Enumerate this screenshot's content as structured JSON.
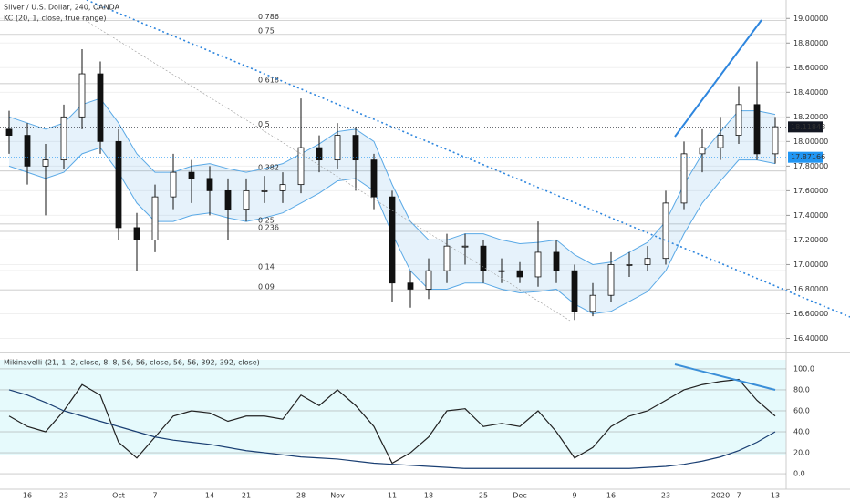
{
  "chart_data": [
    {
      "type": "candlestick",
      "title": "Silver / U.S. Dollar, 240, OANDA",
      "subtitle": "KC (20, 1, close, true range)",
      "categories": [
        null,
        "16",
        null,
        "23",
        null,
        null,
        "Oct",
        null,
        "7",
        null,
        null,
        "14",
        null,
        "21",
        null,
        null,
        "28",
        null,
        "Nov",
        null,
        null,
        "11",
        null,
        "18",
        null,
        null,
        "25",
        null,
        "Dec",
        null,
        null,
        "9",
        null,
        "16",
        null,
        null,
        "23",
        null,
        null,
        "2020",
        "7",
        null,
        "13"
      ],
      "open": [
        18.1,
        18.05,
        17.8,
        17.85,
        18.2,
        18.55,
        18.0,
        17.3,
        17.2,
        17.55,
        17.75,
        17.7,
        17.6,
        17.45,
        17.6,
        17.6,
        17.65,
        17.95,
        17.85,
        18.05,
        17.85,
        17.55,
        16.85,
        16.8,
        16.95,
        17.15,
        17.15,
        16.95,
        16.95,
        16.9,
        17.1,
        16.95,
        16.62,
        16.75,
        17.0,
        17.0,
        17.05,
        17.5,
        17.9,
        17.95,
        18.05,
        18.3,
        17.9
      ],
      "high": [
        18.25,
        18.15,
        17.98,
        18.3,
        18.75,
        18.65,
        18.1,
        17.42,
        17.65,
        17.9,
        17.85,
        17.8,
        17.7,
        17.7,
        17.72,
        17.75,
        18.35,
        18.05,
        18.15,
        18.12,
        17.9,
        17.6,
        16.95,
        17.05,
        17.25,
        17.25,
        17.2,
        17.05,
        17.02,
        17.35,
        17.2,
        17.0,
        16.85,
        17.1,
        17.1,
        17.15,
        17.6,
        18.0,
        18.1,
        18.2,
        18.45,
        18.65,
        18.2
      ],
      "low": [
        17.9,
        17.65,
        17.4,
        17.78,
        18.1,
        17.9,
        17.2,
        16.95,
        17.1,
        17.45,
        17.5,
        17.4,
        17.2,
        17.35,
        17.5,
        17.5,
        17.58,
        17.75,
        17.78,
        17.6,
        17.45,
        16.7,
        16.65,
        16.72,
        16.85,
        17.0,
        16.85,
        16.85,
        16.85,
        16.82,
        16.85,
        16.55,
        16.58,
        16.7,
        16.9,
        16.95,
        17.0,
        17.45,
        17.75,
        17.85,
        17.98,
        17.85,
        17.82
      ],
      "close": [
        18.05,
        17.8,
        17.85,
        18.2,
        18.55,
        18.0,
        17.3,
        17.2,
        17.55,
        17.75,
        17.7,
        17.6,
        17.45,
        17.6,
        17.6,
        17.65,
        17.95,
        17.85,
        18.05,
        17.85,
        17.55,
        16.85,
        16.8,
        16.95,
        17.15,
        17.15,
        16.95,
        16.95,
        16.9,
        17.1,
        16.95,
        16.62,
        16.75,
        17.0,
        17.0,
        17.05,
        17.5,
        17.9,
        17.95,
        18.05,
        18.3,
        17.9,
        18.12
      ],
      "band_upper": [
        18.2,
        18.15,
        18.1,
        18.15,
        18.3,
        18.35,
        18.15,
        17.9,
        17.75,
        17.75,
        17.8,
        17.82,
        17.78,
        17.75,
        17.78,
        17.82,
        17.9,
        17.98,
        18.08,
        18.1,
        18.0,
        17.65,
        17.35,
        17.2,
        17.2,
        17.25,
        17.25,
        17.2,
        17.17,
        17.18,
        17.2,
        17.08,
        17.0,
        17.02,
        17.1,
        17.18,
        17.35,
        17.65,
        17.9,
        18.08,
        18.25,
        18.25,
        18.22
      ],
      "band_lower": [
        17.8,
        17.75,
        17.7,
        17.75,
        17.9,
        17.95,
        17.75,
        17.5,
        17.35,
        17.35,
        17.4,
        17.42,
        17.38,
        17.35,
        17.38,
        17.42,
        17.5,
        17.58,
        17.68,
        17.7,
        17.6,
        17.25,
        16.95,
        16.8,
        16.8,
        16.85,
        16.85,
        16.8,
        16.77,
        16.78,
        16.8,
        16.68,
        16.6,
        16.62,
        16.7,
        16.78,
        16.95,
        17.25,
        17.5,
        17.68,
        17.85,
        17.85,
        17.82
      ],
      "band_color": "#5aa9e6",
      "fib_levels": [
        {
          "ratio": 0.786,
          "price": 18.985
        },
        {
          "ratio": 0.75,
          "price": 18.87
        },
        {
          "ratio": 0.618,
          "price": 18.47
        },
        {
          "ratio": 0.5,
          "price": 18.11
        },
        {
          "ratio": 0.382,
          "price": 17.76
        },
        {
          "ratio": 0.25,
          "price": 17.33
        },
        {
          "ratio": 0.236,
          "price": 17.27
        },
        {
          "ratio": 0.14,
          "price": 16.95
        },
        {
          "ratio": 0.09,
          "price": 16.79
        }
      ],
      "price_labels": [
        18.11848,
        17.87166
      ],
      "price_label_colors": [
        "#131722",
        "#2196f3"
      ],
      "ylim": [
        16.3,
        19.15
      ],
      "yticks": [
        {
          "value": 16.4,
          "label": "16.40000"
        },
        {
          "value": 16.6,
          "label": "16.60000"
        },
        {
          "value": 16.8,
          "label": "16.80000"
        },
        {
          "value": 17.0,
          "label": "17.00000"
        },
        {
          "value": 17.2,
          "label": "17.20000"
        },
        {
          "value": 17.4,
          "label": "17.40000"
        },
        {
          "value": 17.6,
          "label": "17.60000"
        },
        {
          "value": 17.8,
          "label": "17.80000"
        },
        {
          "value": 18.0,
          "label": "18.00000"
        },
        {
          "value": 18.2,
          "label": "18.20000"
        },
        {
          "value": 18.4,
          "label": "18.40000"
        },
        {
          "value": 18.6,
          "label": "18.60000"
        },
        {
          "value": 18.8,
          "label": "18.80000"
        },
        {
          "value": 19.0,
          "label": "19.00000"
        }
      ]
    },
    {
      "type": "line",
      "title": "Mikinavelli (21, 1, 2, close, 8, 8, 56, 56, close, 56, 56, 392, 392, close)",
      "series": [
        {
          "color": "#222222",
          "values": [
            55,
            45,
            40,
            60,
            85,
            75,
            30,
            15,
            35,
            55,
            60,
            58,
            50,
            55,
            55,
            52,
            75,
            65,
            80,
            65,
            45,
            10,
            20,
            35,
            60,
            62,
            45,
            48,
            45,
            60,
            40,
            15,
            25,
            45,
            55,
            60,
            70,
            80,
            85,
            88,
            90,
            70,
            55
          ]
        },
        {
          "color": "#1a3f73",
          "values": [
            80,
            75,
            68,
            60,
            55,
            50,
            45,
            40,
            35,
            32,
            30,
            28,
            25,
            22,
            20,
            18,
            16,
            15,
            14,
            12,
            10,
            9,
            8,
            7,
            6,
            5,
            5,
            5,
            5,
            5,
            5,
            5,
            5,
            5,
            5,
            6,
            7,
            9,
            12,
            16,
            22,
            30,
            40
          ]
        }
      ],
      "ylim": [
        -13,
        113
      ],
      "yticks": [
        {
          "value": 0,
          "label": "0.0"
        },
        {
          "value": 20,
          "label": "20.0"
        },
        {
          "value": 40,
          "label": "40.0"
        },
        {
          "value": 60,
          "label": "60.0"
        },
        {
          "value": 80,
          "label": "80.0"
        },
        {
          "value": 100,
          "label": "100.0"
        }
      ]
    }
  ]
}
